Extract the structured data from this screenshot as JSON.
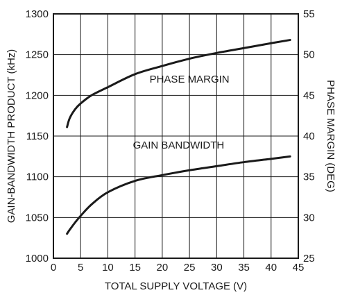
{
  "chart_data": {
    "type": "line",
    "xlabel": "TOTAL SUPPLY VOLTAGE (V)",
    "ylabel": "GAIN-BANDWIDTH PRODUCT (kHz)",
    "y2label": "PHASE MARGIN (DEG)",
    "xlim": [
      0,
      45
    ],
    "ylim": [
      1000,
      1300
    ],
    "y2lim": [
      25,
      55
    ],
    "x_ticks": [
      "0",
      "5",
      "10",
      "15",
      "20",
      "25",
      "30",
      "35",
      "40",
      "45"
    ],
    "y_ticks": [
      "1000",
      "1050",
      "1100",
      "1150",
      "1200",
      "1250",
      "1300"
    ],
    "y2_ticks": [
      "25",
      "30",
      "35",
      "40",
      "45",
      "50",
      "55"
    ],
    "grid": true,
    "annotations": [
      {
        "text": "PHASE MARGIN",
        "series": "phase_margin"
      },
      {
        "text": "GAIN BANDWIDTH",
        "series": "gain_bandwidth"
      }
    ],
    "series": [
      {
        "id": "phase_margin",
        "axis": "right",
        "x": [
          2.5,
          3,
          4,
          5,
          7,
          10,
          15,
          20,
          25,
          30,
          35,
          40,
          43.5
        ],
        "y": [
          41.1,
          42.2,
          43.3,
          44.0,
          45.0,
          46.0,
          47.6,
          48.6,
          49.5,
          50.2,
          50.8,
          51.4,
          51.8
        ]
      },
      {
        "id": "gain_bandwidth",
        "axis": "left",
        "x": [
          2.5,
          3,
          4,
          5,
          7,
          10,
          15,
          20,
          25,
          30,
          35,
          40,
          43.5
        ],
        "y": [
          1030,
          1035,
          1044,
          1052,
          1066,
          1081,
          1095,
          1102,
          1108,
          1113,
          1118,
          1122,
          1125
        ]
      }
    ]
  }
}
